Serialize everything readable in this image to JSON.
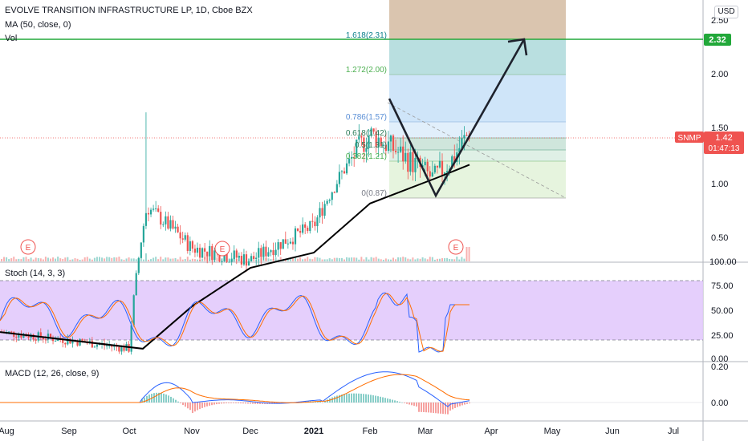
{
  "header": {
    "title": "EVOLVE TRANSITION INFRASTRUCTURE LP, 1D, Cboe BZX",
    "ma_label": "MA (50, close, 0)",
    "vol_label": "Vol",
    "currency": "USD"
  },
  "price_axis": {
    "ticks": [
      "2.50",
      "2.00",
      "1.50",
      "1.00",
      "0.50"
    ],
    "volume_tick": "100.00"
  },
  "price_tags": {
    "target": "2.32",
    "symbol": "SNMP",
    "last": "1.42",
    "countdown": "01:47:13"
  },
  "fib_levels": [
    {
      "label": "1.618(2.31)",
      "value": 2.31
    },
    {
      "label": "1.272(2.00)",
      "value": 2.0
    },
    {
      "label": "0.786(1.57)",
      "value": 1.57
    },
    {
      "label": "0.618(1.42)",
      "value": 1.42
    },
    {
      "label": "0.5(1.31)",
      "value": 1.31
    },
    {
      "label": "0.382(1.21)",
      "value": 1.21
    },
    {
      "label": "0(0.87)",
      "value": 0.87
    }
  ],
  "earnings_markers": [
    "E",
    "E",
    "E"
  ],
  "stoch": {
    "label": "Stoch (14, 3, 3)",
    "ticks": [
      "75.00",
      "50.00",
      "25.00",
      "0.00"
    ]
  },
  "macd": {
    "label": "MACD (12, 26, close, 9)",
    "ticks": [
      "0.20",
      "0.00"
    ]
  },
  "time_axis": [
    "Aug",
    "Sep",
    "Oct",
    "Nov",
    "Dec",
    "2021",
    "Feb",
    "Mar",
    "Apr",
    "May",
    "Jun",
    "Jul"
  ],
  "colors": {
    "up": "#26a69a",
    "down": "#ef5350",
    "ma": "#000000",
    "target_line": "#22a83a",
    "stoch_band": "#e1c7fb",
    "stoch_k": "#2962ff",
    "stoch_d": "#ff6d00",
    "macd_line": "#2962ff",
    "signal_line": "#ff6d00"
  },
  "chart_data": {
    "type": "candlestick",
    "title": "EVOLVE TRANSITION INFRASTRUCTURE LP, 1D, Cboe BZX",
    "symbol": "SNMP",
    "last_price": 1.42,
    "y_range": [
      0.3,
      2.6
    ],
    "y_scale": "log",
    "price_path": [
      [
        "Aug",
        0.4
      ],
      [
        "Sep",
        0.38
      ],
      [
        "Oct",
        0.36
      ],
      [
        "Oct",
        0.88
      ],
      [
        "Nov",
        0.68
      ],
      [
        "Dec",
        0.63
      ],
      [
        "2021",
        0.78
      ],
      [
        "Feb",
        1.4
      ],
      [
        "Mar",
        1.05
      ],
      [
        "Mar",
        1.2
      ],
      [
        "Mar",
        1.42
      ]
    ],
    "ma50_path": [
      [
        "Aug",
        0.4
      ],
      [
        "Oct",
        0.36
      ],
      [
        "Nov",
        0.47
      ],
      [
        "Dec",
        0.6
      ],
      [
        "2021",
        0.66
      ],
      [
        "Feb",
        0.9
      ],
      [
        "Mar",
        1.06
      ],
      [
        "Mar",
        1.15
      ]
    ],
    "spike_high": 1.6,
    "projection": {
      "from": 1.75,
      "low": 0.9,
      "target": 2.32
    },
    "stoch_range": [
      0,
      100
    ],
    "stoch_bands": [
      20,
      80
    ],
    "macd_range": [
      -0.05,
      0.2
    ]
  }
}
